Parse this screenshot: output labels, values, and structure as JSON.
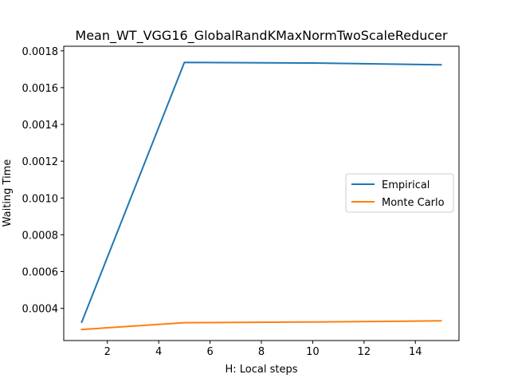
{
  "chart_data": {
    "type": "line",
    "title": "Mean_WT_VGG16_GlobalRandKMaxNormTwoScaleReducer",
    "xlabel": "H: Local steps",
    "ylabel": "Waiting Time",
    "x": [
      1,
      5,
      10,
      15
    ],
    "xlim": [
      0.3,
      15.7
    ],
    "ylim": [
      0.000225,
      0.001825
    ],
    "xticks": [
      2,
      4,
      6,
      8,
      10,
      12,
      14
    ],
    "xtick_labels": [
      "2",
      "4",
      "6",
      "8",
      "10",
      "12",
      "14"
    ],
    "yticks": [
      0.0004,
      0.0006,
      0.0008,
      0.001,
      0.0012,
      0.0014,
      0.0016,
      0.0018
    ],
    "ytick_labels": [
      "0.0004",
      "0.0006",
      "0.0008",
      "0.0010",
      "0.0012",
      "0.0014",
      "0.0016",
      "0.0018"
    ],
    "grid": false,
    "legend_position": "center-right",
    "series": [
      {
        "name": "Empirical",
        "color": "#1f77b4",
        "values": [
          0.000325,
          0.001737,
          0.001734,
          0.001724
        ]
      },
      {
        "name": "Monte Carlo",
        "color": "#ff7f0e",
        "values": [
          0.000285,
          0.000322,
          0.000326,
          0.000332
        ]
      }
    ]
  }
}
